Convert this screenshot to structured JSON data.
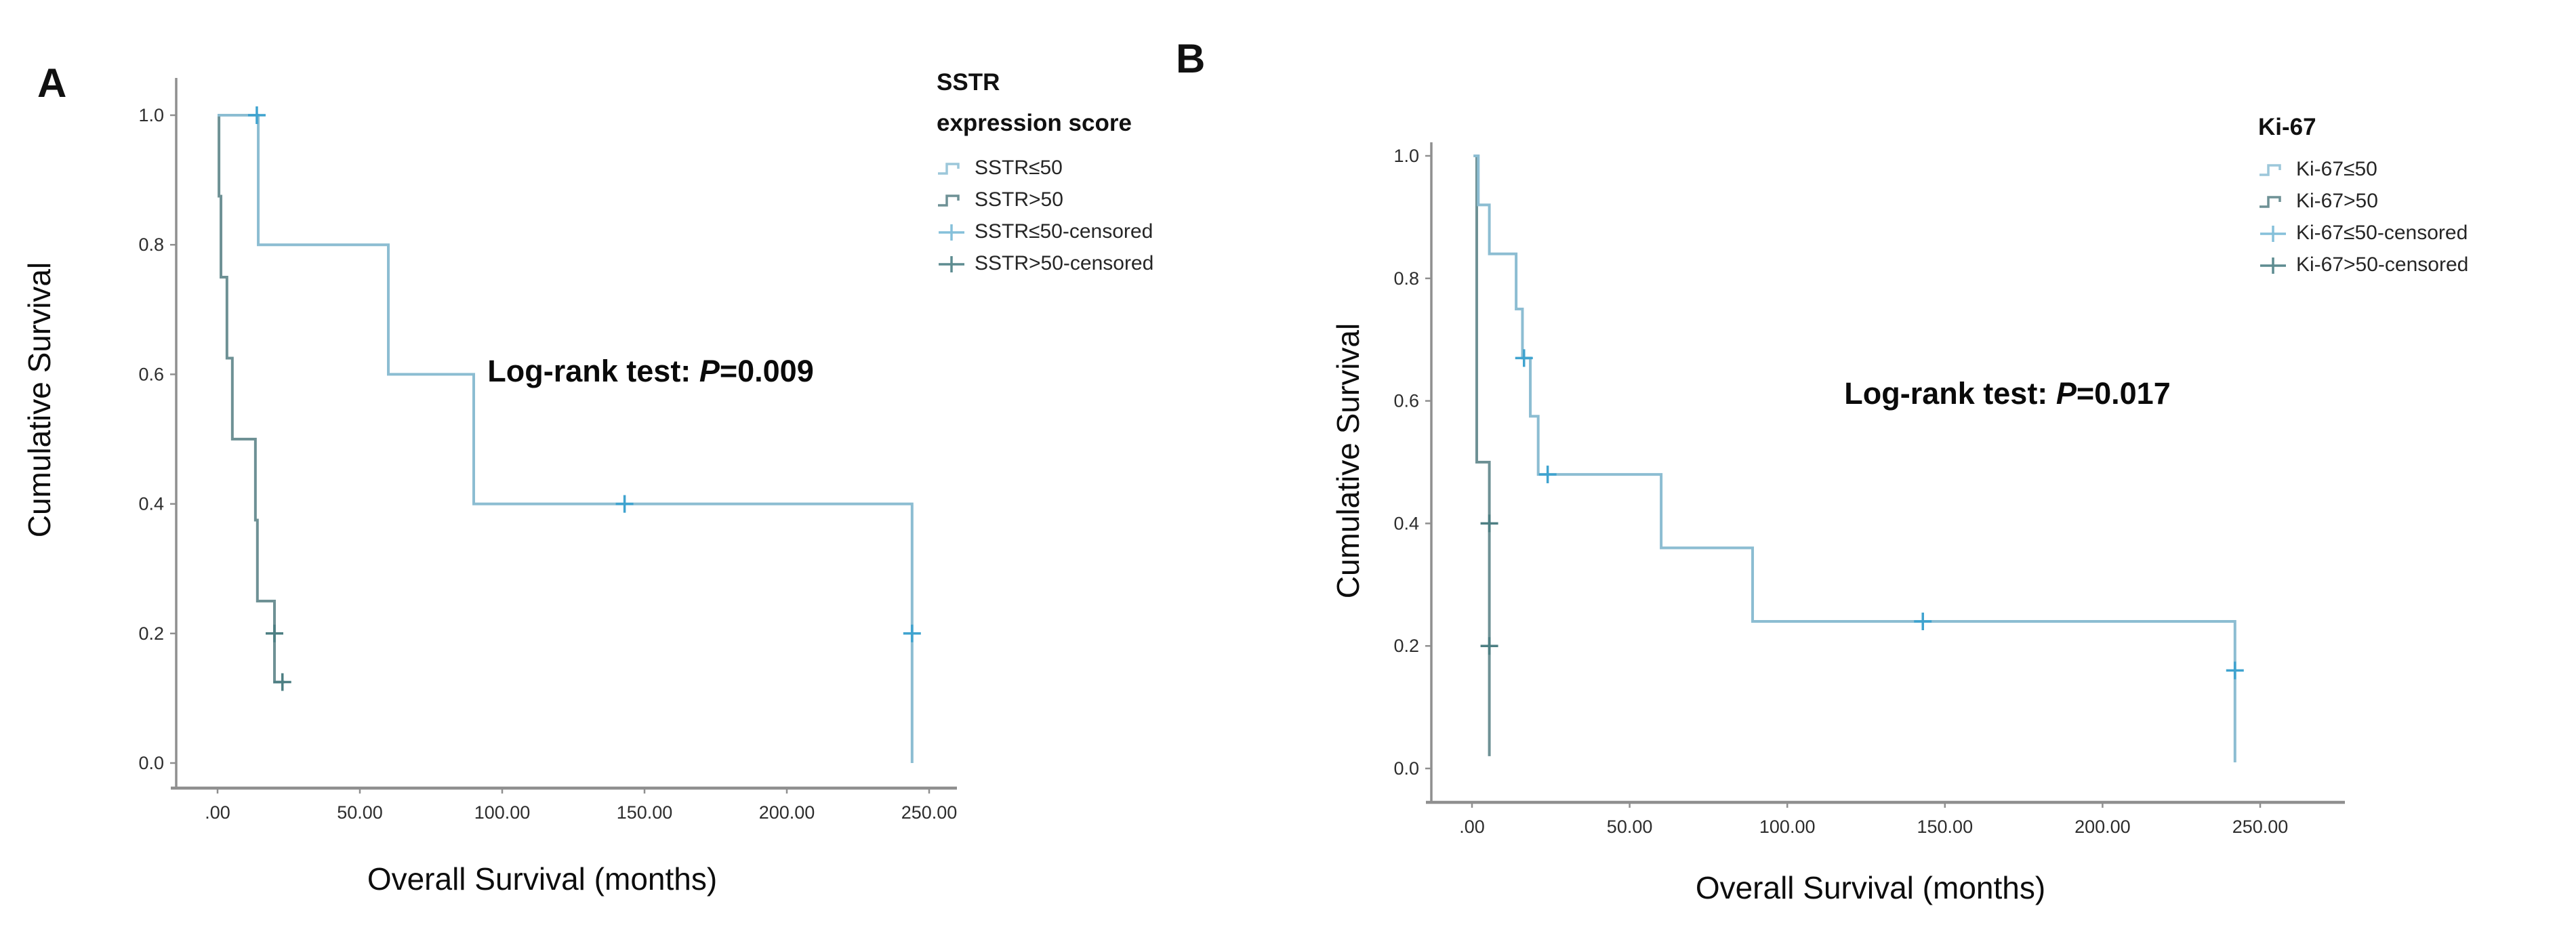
{
  "figure": {
    "panels": [
      {
        "label": "A"
      },
      {
        "label": "B"
      }
    ]
  },
  "chart_data": [
    {
      "type": "line",
      "subtype": "kaplan-meier-step",
      "panel": "A",
      "title": "",
      "xlabel": "Overall Survival (months)",
      "ylabel": "Cumulative Survival",
      "xlim": [
        0,
        260
      ],
      "ylim": [
        0,
        1.0
      ],
      "grid": false,
      "legend_position": "right-top",
      "x_ticks": [
        {
          "v": 0,
          "label": ".00"
        },
        {
          "v": 50,
          "label": "50.00"
        },
        {
          "v": 100,
          "label": "100.00"
        },
        {
          "v": 150,
          "label": "150.00"
        },
        {
          "v": 200,
          "label": "200.00"
        },
        {
          "v": 250,
          "label": "250.00"
        }
      ],
      "y_ticks": [
        {
          "v": 0.0,
          "label": "0.0"
        },
        {
          "v": 0.2,
          "label": "0.2"
        },
        {
          "v": 0.4,
          "label": "0.4"
        },
        {
          "v": 0.6,
          "label": "0.6"
        },
        {
          "v": 0.8,
          "label": "0.8"
        },
        {
          "v": 1.0,
          "label": "1.0"
        }
      ],
      "annotation": {
        "prefix": "Log-rank test: ",
        "p": "P",
        "value": "=0.009"
      },
      "legend": {
        "title_lines": [
          "SSTR",
          "expression score"
        ],
        "entries": [
          {
            "label": "SSTR≤50",
            "type": "step",
            "color": "#9cc7da"
          },
          {
            "label": "SSTR>50",
            "type": "step",
            "color": "#6e9195"
          },
          {
            "label": "SSTR≤50-censored",
            "type": "plus",
            "color": "#85c0da"
          },
          {
            "label": "SSTR>50-censored",
            "type": "plus",
            "color": "#5d8c90"
          }
        ]
      },
      "series": [
        {
          "name": "SSTR>50",
          "color": "#6e9195",
          "censor_color": "#4d7f83",
          "steps": [
            [
              0,
              1.0
            ],
            [
              0.5,
              0.875
            ],
            [
              1.2,
              0.75
            ],
            [
              3.3,
              0.625
            ],
            [
              5.2,
              0.5
            ],
            [
              13.3,
              0.375
            ],
            [
              14,
              0.25
            ],
            [
              20,
              0.125
            ]
          ],
          "end_x": 23.5,
          "censors": [
            [
              20,
              0.2
            ],
            [
              22.8,
              0.125
            ]
          ]
        },
        {
          "name": "SSTR≤50",
          "color": "#8cbdd2",
          "censor_color": "#3fa3cf",
          "steps": [
            [
              0,
              1.0
            ],
            [
              14.3,
              0.8
            ],
            [
              60,
              0.6
            ],
            [
              90,
              0.4
            ],
            [
              244,
              0.0
            ]
          ],
          "censors": [
            [
              13.8,
              1.0
            ],
            [
              143,
              0.4
            ],
            [
              244,
              0.2
            ]
          ]
        }
      ]
    },
    {
      "type": "line",
      "subtype": "kaplan-meier-step",
      "panel": "B",
      "title": "",
      "xlabel": "Overall Survival (months)",
      "ylabel": "Cumulative Survival",
      "xlim": [
        0,
        270
      ],
      "ylim": [
        0,
        1.0
      ],
      "grid": false,
      "legend_position": "right-top",
      "x_ticks": [
        {
          "v": 0,
          "label": ".00"
        },
        {
          "v": 50,
          "label": "50.00"
        },
        {
          "v": 100,
          "label": "100.00"
        },
        {
          "v": 150,
          "label": "150.00"
        },
        {
          "v": 200,
          "label": "200.00"
        },
        {
          "v": 250,
          "label": "250.00"
        }
      ],
      "y_ticks": [
        {
          "v": 0.0,
          "label": "0.0"
        },
        {
          "v": 0.2,
          "label": "0.2"
        },
        {
          "v": 0.4,
          "label": "0.4"
        },
        {
          "v": 0.6,
          "label": "0.6"
        },
        {
          "v": 0.8,
          "label": "0.8"
        },
        {
          "v": 1.0,
          "label": "1.0"
        }
      ],
      "annotation": {
        "prefix": "Log-rank test: ",
        "p": "P",
        "value": "=0.017"
      },
      "legend": {
        "title_lines": [
          "Ki-67"
        ],
        "entries": [
          {
            "label": "Ki-67≤50",
            "type": "step",
            "color": "#9cc7da"
          },
          {
            "label": "Ki-67>50",
            "type": "step",
            "color": "#6e9195"
          },
          {
            "label": "Ki-67≤50-censored",
            "type": "plus",
            "color": "#85c0da"
          },
          {
            "label": "Ki-67>50-censored",
            "type": "plus",
            "color": "#5d8c90"
          }
        ]
      },
      "series": [
        {
          "name": "Ki-67>50",
          "color": "#6e9195",
          "censor_color": "#4d7f83",
          "steps": [
            [
              0.5,
              1.0
            ],
            [
              1.5,
              0.5
            ],
            [
              5.5,
              0.02
            ]
          ],
          "censors": [
            [
              5.5,
              0.4
            ],
            [
              5.5,
              0.2
            ]
          ]
        },
        {
          "name": "Ki-67≤50",
          "color": "#8cbdd2",
          "censor_color": "#3fa3cf",
          "steps": [
            [
              0.5,
              1.0
            ],
            [
              2,
              0.92
            ],
            [
              5.5,
              0.84
            ],
            [
              14,
              0.75
            ],
            [
              16,
              0.67
            ],
            [
              18.5,
              0.575
            ],
            [
              21,
              0.48
            ],
            [
              60,
              0.36
            ],
            [
              89,
              0.24
            ],
            [
              242,
              0.01
            ]
          ],
          "censors": [
            [
              16.5,
              0.67
            ],
            [
              24,
              0.48
            ],
            [
              143,
              0.24
            ],
            [
              242,
              0.16
            ]
          ]
        }
      ]
    }
  ]
}
